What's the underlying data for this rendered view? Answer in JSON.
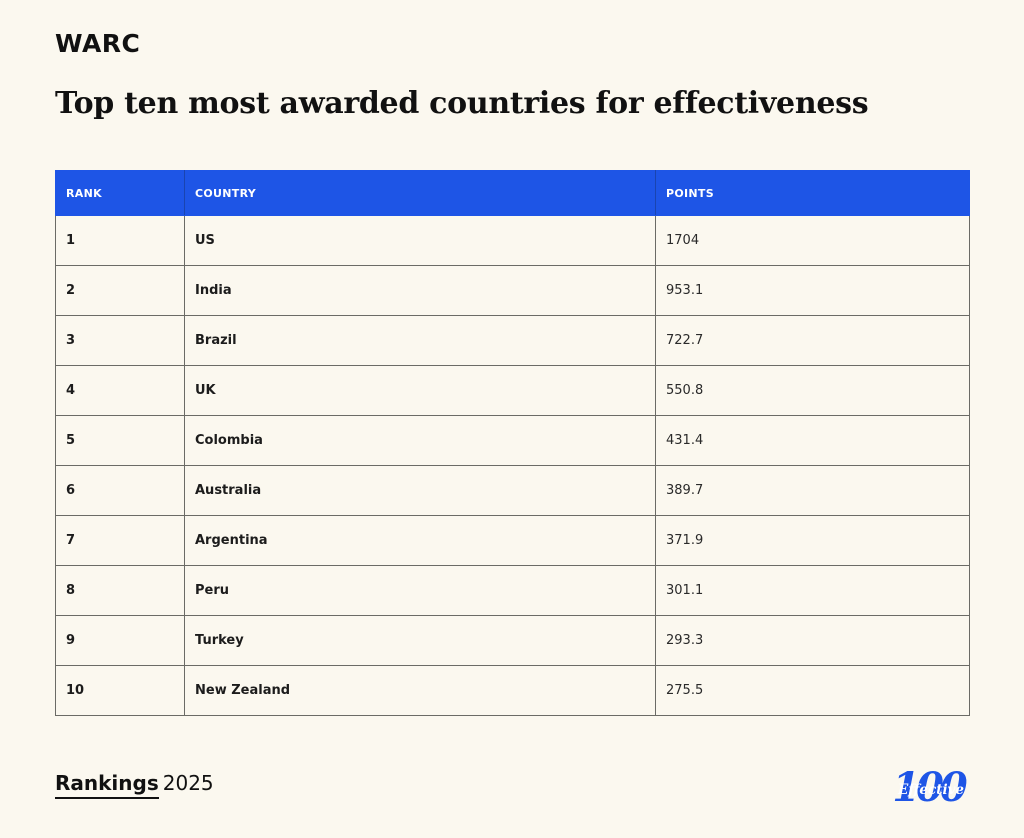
{
  "brand": "WARC",
  "title": "Top ten most awarded countries for effectiveness",
  "chart_data": {
    "type": "table",
    "columns": [
      "RANK",
      "COUNTRY",
      "POINTS"
    ],
    "rows": [
      {
        "rank": "1",
        "country": "US",
        "points": "1704"
      },
      {
        "rank": "2",
        "country": "India",
        "points": "953.1"
      },
      {
        "rank": "3",
        "country": "Brazil",
        "points": "722.7"
      },
      {
        "rank": "4",
        "country": "UK",
        "points": "550.8"
      },
      {
        "rank": "5",
        "country": "Colombia",
        "points": "431.4"
      },
      {
        "rank": "6",
        "country": "Australia",
        "points": "389.7"
      },
      {
        "rank": "7",
        "country": "Argentina",
        "points": "371.9"
      },
      {
        "rank": "8",
        "country": "Peru",
        "points": "301.1"
      },
      {
        "rank": "9",
        "country": "Turkey",
        "points": "293.3"
      },
      {
        "rank": "10",
        "country": "New Zealand",
        "points": "275.5"
      }
    ]
  },
  "footer": {
    "rankings_label": "Rankings",
    "year": "2025",
    "badge_number": "100",
    "badge_text": "Effective"
  },
  "colors": {
    "header_blue": "#1e55e6",
    "background": "#fbf8ef"
  }
}
